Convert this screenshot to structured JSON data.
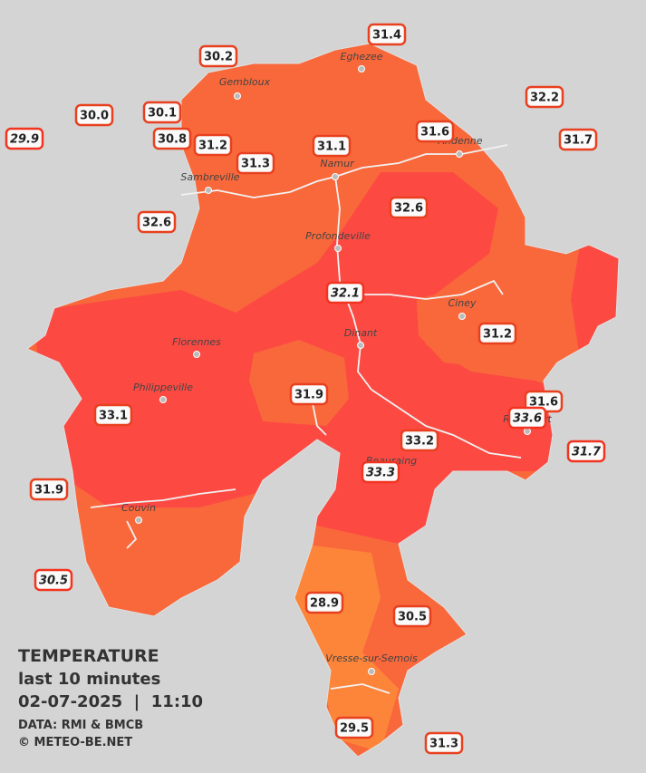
{
  "legend": {
    "title": "TEMPERATURE",
    "subtitle": "last 10 minutes",
    "datetime": "02-07-2025  |  11:10",
    "source": "DATA: RMI & BMCB",
    "copyright": "© METEO-BE.NET"
  },
  "towns": [
    "Eghezee",
    "Gembloux",
    "Andenne",
    "Namur",
    "Sambreville",
    "Profondeville",
    "Ciney",
    "Dinant",
    "Florennes",
    "Philippeville",
    "Rochefort",
    "Beauraing",
    "Couvin",
    "Vresse-sur-Semois"
  ],
  "stations": [
    {
      "value": "31.4",
      "italic": false
    },
    {
      "value": "30.2",
      "italic": false
    },
    {
      "value": "32.2",
      "italic": false
    },
    {
      "value": "30.0",
      "italic": false
    },
    {
      "value": "30.1",
      "italic": false
    },
    {
      "value": "29.9",
      "italic": true
    },
    {
      "value": "31.6",
      "italic": false
    },
    {
      "value": "31.7",
      "italic": false
    },
    {
      "value": "30.8",
      "italic": false
    },
    {
      "value": "31.2",
      "italic": false
    },
    {
      "value": "31.1",
      "italic": false
    },
    {
      "value": "31.3",
      "italic": false
    },
    {
      "value": "32.6",
      "italic": false
    },
    {
      "value": "32.6",
      "italic": false
    },
    {
      "value": "32.1",
      "italic": true
    },
    {
      "value": "31.2",
      "italic": false
    },
    {
      "value": "31.9",
      "italic": false
    },
    {
      "value": "31.6",
      "italic": false
    },
    {
      "value": "33.1",
      "italic": false
    },
    {
      "value": "33.6",
      "italic": true
    },
    {
      "value": "33.2",
      "italic": false
    },
    {
      "value": "31.7",
      "italic": true
    },
    {
      "value": "33.3",
      "italic": true
    },
    {
      "value": "31.9",
      "italic": false
    },
    {
      "value": "30.5",
      "italic": true
    },
    {
      "value": "28.9",
      "italic": false
    },
    {
      "value": "30.5",
      "italic": false
    },
    {
      "value": "29.5",
      "italic": false
    },
    {
      "value": "31.3",
      "italic": false
    }
  ]
}
